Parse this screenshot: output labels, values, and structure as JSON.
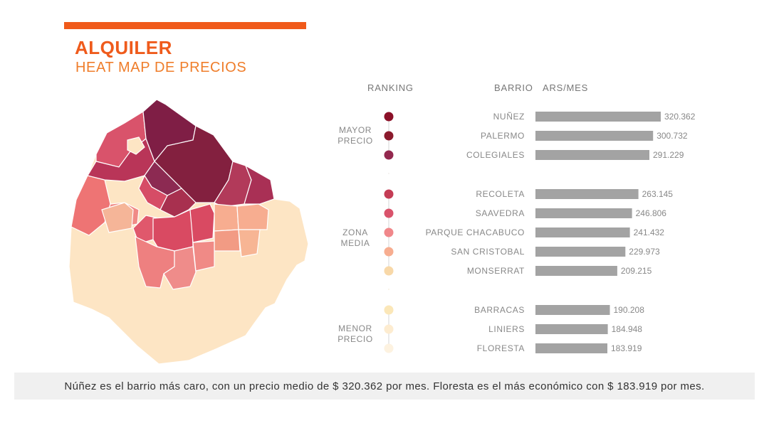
{
  "header": {
    "title": "ALQUILER",
    "subtitle": "HEAT MAP DE PRECIOS"
  },
  "columns": {
    "ranking": "RANKING",
    "barrio": "BARRIO",
    "unit": "ARS/MES"
  },
  "groups": [
    {
      "line1": "MAYOR",
      "line2": "PRECIO"
    },
    {
      "line1": "ZONA",
      "line2": "MEDIA"
    },
    {
      "line1": "MENOR",
      "line2": "PRECIO"
    }
  ],
  "colors": {
    "accent": "#f05a1a",
    "bar": "#a3a3a3",
    "scale": [
      "#8b1028",
      "#8b1a2c",
      "#93284e",
      "#c43c55",
      "#d9536b",
      "#f0878a",
      "#f7ad90",
      "#f8d8a8",
      "#fbe7b8",
      "#fdecd0",
      "#fdf2e0"
    ]
  },
  "chart_data": {
    "type": "bar",
    "orientation": "horizontal",
    "categories": [
      "NUÑEZ",
      "PALERMO",
      "COLEGIALES",
      "RECOLETA",
      "SAAVEDRA",
      "PARQUE CHACABUCO",
      "SAN CRISTOBAL",
      "MONSERRAT",
      "BARRACAS",
      "LINIERS",
      "FLORESTA"
    ],
    "values": [
      320362,
      300732,
      291229,
      263145,
      246806,
      241432,
      229973,
      209215,
      190208,
      184948,
      183919
    ],
    "value_labels": [
      "320.362",
      "300.732",
      "291.229",
      "263.145",
      "246.806",
      "241.432",
      "229.973",
      "209.215",
      "190.208",
      "184.948",
      "183.919"
    ],
    "groups": [
      [
        0,
        3
      ],
      [
        3,
        8
      ],
      [
        8,
        11
      ]
    ],
    "xlim": [
      0,
      320362
    ]
  },
  "footer": {
    "text": "Núñez es el barrio más caro, con un precio medio de $ 320.362 por mes. Floresta es el más económico con $ 183.919 por mes."
  }
}
